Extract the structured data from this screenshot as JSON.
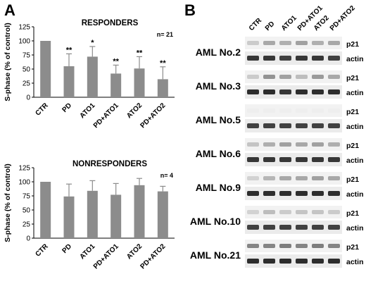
{
  "panels": {
    "a_label": "A",
    "b_label": "B"
  },
  "chart_data": [
    {
      "type": "bar",
      "title": "RESPONDERS",
      "n_label": "n= 21",
      "ylabel": "S-phase (% of control)",
      "ylim": [
        0,
        125
      ],
      "yticks": [
        0,
        25,
        50,
        75,
        100,
        125
      ],
      "categories": [
        "CTR",
        "PD",
        "ATO1",
        "PD+ATO1",
        "ATO2",
        "PD+ATO2"
      ],
      "values": [
        100,
        55,
        72,
        42,
        51,
        32
      ],
      "errors": [
        1,
        22,
        18,
        15,
        21,
        22
      ],
      "significance": [
        "",
        "**",
        "*",
        "**",
        "**",
        "**"
      ],
      "grid": false,
      "colors": {
        "bar": "#8c8c8c",
        "error": "#8c8c8c"
      }
    },
    {
      "type": "bar",
      "title": "NONRESPONDERS",
      "n_label": "n= 4",
      "ylabel": "S-phase (% of control)",
      "ylim": [
        0,
        125
      ],
      "yticks": [
        0,
        25,
        50,
        75,
        100,
        125
      ],
      "categories": [
        "CTR",
        "PD",
        "ATO1",
        "PD+ATO1",
        "ATO2",
        "PD+ATO2"
      ],
      "values": [
        100,
        74,
        84,
        77,
        94,
        83
      ],
      "errors": [
        1,
        22,
        18,
        20,
        12,
        9
      ],
      "significance": [
        "",
        "",
        "",
        "",
        "",
        ""
      ],
      "grid": false,
      "colors": {
        "bar": "#8c8c8c",
        "error": "#8c8c8c"
      }
    }
  ],
  "blot": {
    "lane_labels": [
      "CTR",
      "PD",
      "ATO1",
      "PD+ATO1",
      "ATO2",
      "PD+ATO2"
    ],
    "rows": [
      {
        "sample": "AML No.2",
        "p21_label": "p21",
        "actin_label": "actin",
        "p21_intensity": [
          0.3,
          0.55,
          0.5,
          0.6,
          0.5,
          0.55
        ],
        "actin_intensity": [
          0.9,
          0.9,
          0.85,
          0.9,
          0.9,
          0.85
        ]
      },
      {
        "sample": "AML No.3",
        "p21_label": "p21",
        "actin_label": "actin",
        "p21_intensity": [
          0.3,
          0.7,
          0.6,
          0.4,
          0.65,
          0.55
        ],
        "actin_intensity": [
          0.95,
          0.95,
          0.9,
          0.95,
          0.95,
          0.95
        ]
      },
      {
        "sample": "AML No.5",
        "p21_label": "p21",
        "actin_label": "actin",
        "p21_intensity": [
          0.05,
          0.05,
          0.05,
          0.05,
          0.05,
          0.05
        ],
        "actin_intensity": [
          0.85,
          0.85,
          0.85,
          0.85,
          0.85,
          0.85
        ]
      },
      {
        "sample": "AML No.6",
        "p21_label": "p21",
        "actin_label": "actin",
        "p21_intensity": [
          0.35,
          0.5,
          0.6,
          0.55,
          0.6,
          0.5
        ],
        "actin_intensity": [
          0.9,
          0.9,
          0.9,
          0.9,
          0.9,
          0.9
        ]
      },
      {
        "sample": "AML No.9",
        "p21_label": "p21",
        "actin_label": "actin",
        "p21_intensity": [
          0.25,
          0.45,
          0.55,
          0.55,
          0.6,
          0.55
        ],
        "actin_intensity": [
          0.95,
          0.95,
          0.95,
          0.95,
          0.95,
          0.95
        ]
      },
      {
        "sample": "AML No.10",
        "p21_label": "p21",
        "actin_label": "actin",
        "p21_intensity": [
          0.25,
          0.4,
          0.3,
          0.35,
          0.35,
          0.3
        ],
        "actin_intensity": [
          0.85,
          0.85,
          0.85,
          0.85,
          0.85,
          0.85
        ]
      },
      {
        "sample": "AML No.21",
        "p21_label": "p21",
        "actin_label": "actin",
        "p21_intensity": [
          0.8,
          0.8,
          0.85,
          0.8,
          0.85,
          0.8
        ],
        "actin_intensity": [
          0.95,
          0.95,
          0.95,
          0.95,
          0.95,
          0.95
        ]
      }
    ]
  }
}
